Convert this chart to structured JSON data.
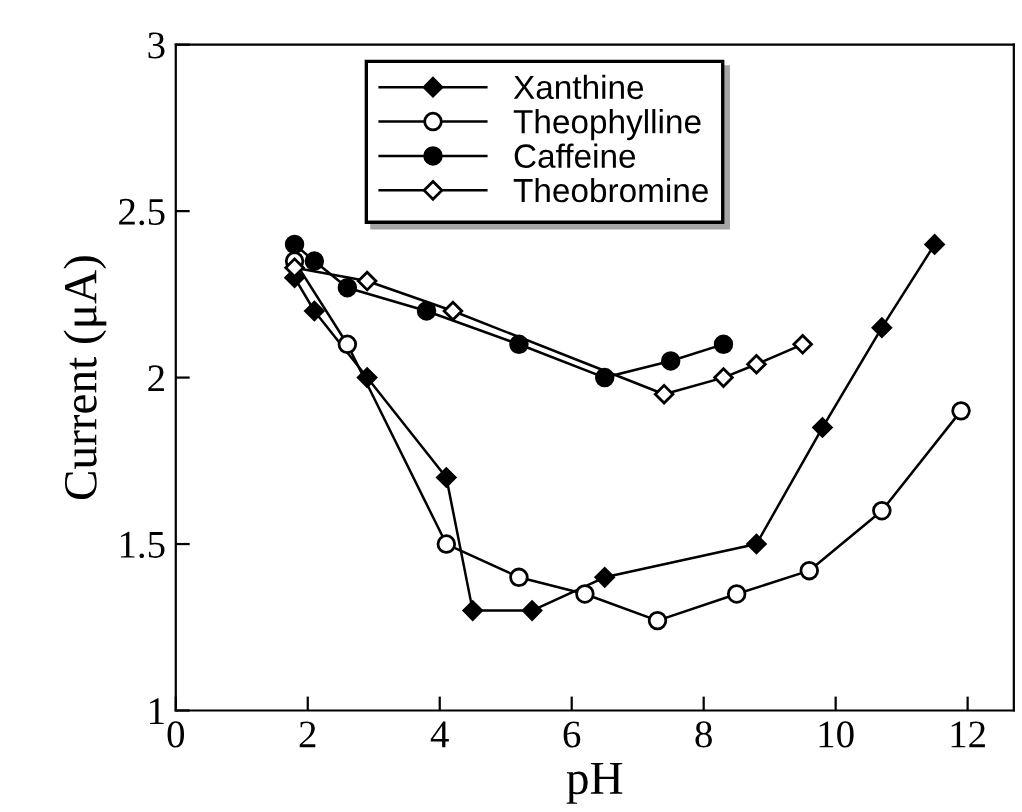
{
  "chart_data": {
    "type": "line",
    "xlabel": "pH",
    "ylabel": "Current (μA)",
    "xlim": [
      0,
      12.7
    ],
    "ylim": [
      1,
      3
    ],
    "xticks": [
      0,
      2,
      4,
      6,
      8,
      10,
      12
    ],
    "yticks": [
      1,
      {
        "value": 1.5,
        "label": "1.5"
      },
      2,
      {
        "value": 2.5,
        "label": "2.5"
      },
      3
    ],
    "grid": false,
    "legend": "top",
    "line_style": "solid",
    "series": [
      {
        "name": "Xanthine",
        "color": "#000000",
        "marker": "diamond",
        "x": [
          1.8,
          2.1,
          2.9,
          4.1,
          4.5,
          5.4,
          6.5,
          8.8,
          9.8,
          10.7,
          11.5
        ],
        "values": [
          2.3,
          2.2,
          2.0,
          1.7,
          1.3,
          1.3,
          1.4,
          1.5,
          1.85,
          2.15,
          2.4
        ]
      },
      {
        "name": "Theophylline",
        "color": "#000000",
        "marker": "circle",
        "x": [
          1.8,
          2.6,
          4.1,
          5.2,
          6.2,
          7.3,
          8.5,
          9.6,
          10.7,
          11.9
        ],
        "values": [
          2.35,
          2.1,
          1.5,
          1.4,
          1.35,
          1.27,
          1.35,
          1.42,
          1.6,
          1.9
        ]
      },
      {
        "name": "Caffeine",
        "color": "#000000",
        "marker": "circle",
        "x": [
          1.8,
          2.1,
          2.6,
          3.8,
          5.2,
          6.5,
          7.5,
          8.3
        ],
        "values": [
          2.4,
          2.35,
          2.27,
          2.2,
          2.1,
          2.0,
          2.05,
          2.1
        ]
      },
      {
        "name": "Theobromine",
        "color": "#000000",
        "marker": "diamond",
        "x": [
          1.8,
          2.9,
          4.2,
          7.4,
          8.3,
          8.8,
          9.5
        ],
        "values": [
          2.33,
          2.29,
          2.2,
          1.95,
          2.0,
          2.04,
          2.1
        ]
      }
    ]
  }
}
